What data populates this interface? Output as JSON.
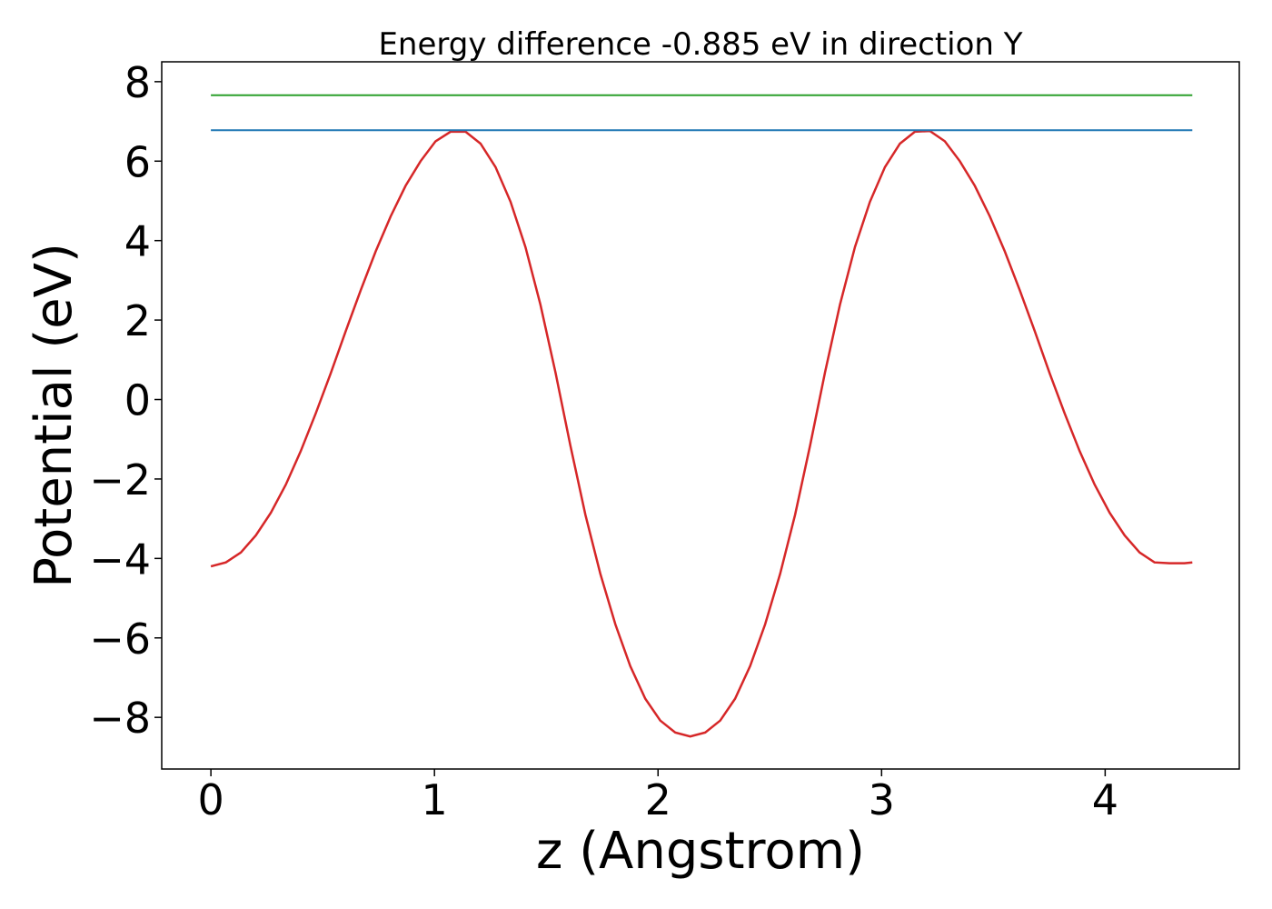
{
  "chart_data": {
    "type": "line",
    "title": "Energy difference -0.885 eV in direction Y",
    "xlabel": "z (Angstrom)",
    "ylabel": "Potential (eV)",
    "xlim": [
      -0.22,
      4.6
    ],
    "ylim": [
      -9.3,
      8.5
    ],
    "x_ticks": [
      0,
      1,
      2,
      3,
      4
    ],
    "x_tick_labels": [
      "0",
      "1",
      "2",
      "3",
      "4"
    ],
    "y_ticks": [
      8,
      6,
      4,
      2,
      0,
      -2,
      -4,
      -6,
      -8
    ],
    "y_tick_labels": [
      "8",
      "6",
      "4",
      "2",
      "0",
      "−2",
      "−4",
      "−6",
      "−8"
    ],
    "grid": false,
    "legend": "none",
    "series": [
      {
        "color": "#d62728",
        "x": [
          0.0,
          0.067,
          0.134,
          0.201,
          0.268,
          0.335,
          0.402,
          0.469,
          0.536,
          0.603,
          0.67,
          0.737,
          0.804,
          0.871,
          0.938,
          1.005,
          1.072,
          1.139,
          1.206,
          1.273,
          1.34,
          1.407,
          1.474,
          1.541,
          1.608,
          1.675,
          1.742,
          1.809,
          1.876,
          1.943,
          2.01,
          2.077,
          2.144,
          2.211,
          2.278,
          2.345,
          2.412,
          2.479,
          2.546,
          2.613,
          2.68,
          2.747,
          2.814,
          2.881,
          2.948,
          3.015,
          3.082,
          3.149,
          3.216,
          3.283,
          3.35,
          3.417,
          3.484,
          3.551,
          3.618,
          3.685,
          3.752,
          3.819,
          3.886,
          3.953,
          4.02,
          4.087,
          4.154,
          4.221,
          4.288,
          4.355,
          4.39
        ],
        "y": [
          -4.2,
          -4.1,
          -3.85,
          -3.42,
          -2.85,
          -2.14,
          -1.3,
          -0.35,
          0.66,
          1.72,
          2.75,
          3.73,
          4.61,
          5.38,
          6.0,
          6.5,
          6.74,
          6.74,
          6.44,
          5.85,
          4.98,
          3.84,
          2.39,
          0.69,
          -1.16,
          -2.9,
          -4.39,
          -5.66,
          -6.71,
          -7.53,
          -8.08,
          -8.38,
          -8.48,
          -8.38,
          -8.08,
          -7.53,
          -6.71,
          -5.66,
          -4.39,
          -2.9,
          -1.16,
          0.69,
          2.39,
          3.84,
          4.98,
          5.85,
          6.44,
          6.74,
          6.76,
          6.5,
          6.0,
          5.38,
          4.61,
          3.73,
          2.75,
          1.72,
          0.66,
          -0.35,
          -1.3,
          -2.14,
          -2.85,
          -3.42,
          -3.85,
          -4.1,
          -4.12,
          -4.12,
          -4.1
        ]
      },
      {
        "color": "#1f77b4",
        "x": [
          0.0,
          4.39
        ],
        "y": [
          6.78,
          6.78
        ]
      },
      {
        "color": "#2ca02c",
        "x": [
          0.0,
          4.39
        ],
        "y": [
          7.66,
          7.66
        ]
      }
    ]
  }
}
